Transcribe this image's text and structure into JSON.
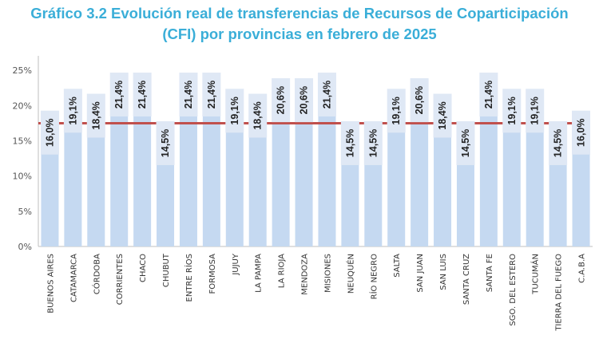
{
  "chart_data": {
    "type": "bar",
    "title_line1": "Gráfico 3.2 Evolución real de transferencias de Recursos de Coparticipación",
    "title_line2": "(CFI) por provincias en febrero de 2025",
    "categories": [
      "BUENOS AIRES",
      "CATAMARCA",
      "CÓRDOBA",
      "CORRIENTES",
      "CHACO",
      "CHUBUT",
      "ENTRE RÍOS",
      "FORMOSA",
      "JUJUY",
      "LA PAMPA",
      "LA RIOJA",
      "MENDOZA",
      "MISIONES",
      "NEUQUÉN",
      "RÍO NEGRO",
      "SALTA",
      "SAN JUAN",
      "SAN LUIS",
      "SANTA CRUZ",
      "SANTA FE",
      "SGO. DEL ESTERO",
      "TUCUMÁN",
      "TIERRA DEL FUEGO",
      "C.A.B.A"
    ],
    "values": [
      16.0,
      19.1,
      18.4,
      21.4,
      21.4,
      14.5,
      21.4,
      21.4,
      19.1,
      18.4,
      20.6,
      20.6,
      21.4,
      14.5,
      14.5,
      19.1,
      20.6,
      18.4,
      14.5,
      21.4,
      19.1,
      19.1,
      14.5,
      16.0
    ],
    "data_labels": [
      "16,0%",
      "19,1%",
      "18,4%",
      "21,4%",
      "21,4%",
      "14,5%",
      "21,4%",
      "21,4%",
      "19,1%",
      "18,4%",
      "20,6%",
      "20,6%",
      "21,4%",
      "14,5%",
      "14,5%",
      "19,1%",
      "20,6%",
      "18,4%",
      "14,5%",
      "21,4%",
      "19,1%",
      "19,1%",
      "14,5%",
      "16,0%"
    ],
    "yticks": [
      0,
      5,
      10,
      15,
      20,
      25
    ],
    "ytick_labels": [
      "0%",
      "5%",
      "10%",
      "15%",
      "20%",
      "25%"
    ],
    "ylim": [
      0,
      26.5
    ],
    "reference_line": 17.5,
    "xlabel": "",
    "ylabel": "",
    "colors": {
      "bar": "#c5d9f1",
      "label_box": "#dfe8f5",
      "reference_line": "#c0504d",
      "title": "#3aaed8",
      "axis": "#bfbfbf"
    }
  }
}
